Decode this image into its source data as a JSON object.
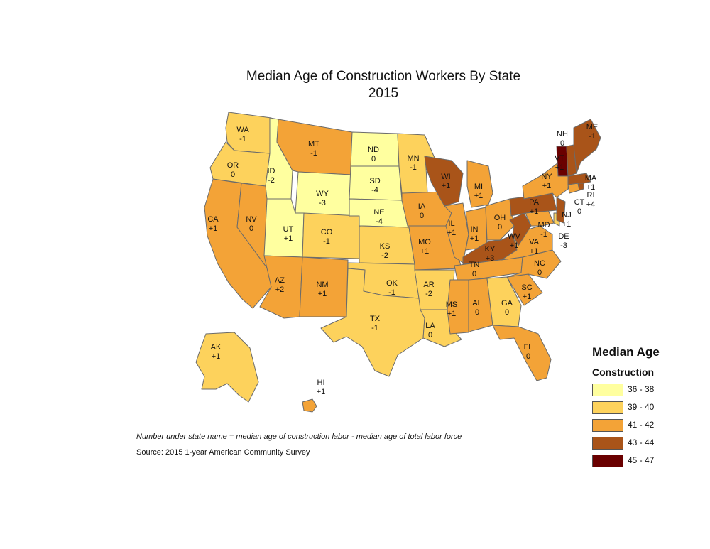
{
  "title_line1": "Median Age of Construction Workers By State",
  "title_line2": "2015",
  "legend": {
    "title": "Median Age",
    "subtitle": "Construction",
    "classes": [
      {
        "label": "36 - 38",
        "color": "#ffff9f"
      },
      {
        "label": "39 - 40",
        "color": "#fdd25c"
      },
      {
        "label": "41 - 42",
        "color": "#f3a337"
      },
      {
        "label": "43 - 44",
        "color": "#a95419"
      },
      {
        "label": "45 - 47",
        "color": "#6a0000"
      }
    ]
  },
  "note": "Number under state name = median age of construction labor - median age of total labor force",
  "source": "Source: 2015 1-year American Community Survey",
  "states": [
    {
      "abbr": "WA",
      "diff": "-1",
      "class": "39 - 40"
    },
    {
      "abbr": "OR",
      "diff": "0",
      "class": "39 - 40"
    },
    {
      "abbr": "CA",
      "diff": "+1",
      "class": "41 - 42"
    },
    {
      "abbr": "NV",
      "diff": "0",
      "class": "41 - 42"
    },
    {
      "abbr": "ID",
      "diff": "-2",
      "class": "36 - 38"
    },
    {
      "abbr": "MT",
      "diff": "-1",
      "class": "41 - 42"
    },
    {
      "abbr": "WY",
      "diff": "-3",
      "class": "36 - 38"
    },
    {
      "abbr": "UT",
      "diff": "+1",
      "class": "36 - 38"
    },
    {
      "abbr": "CO",
      "diff": "-1",
      "class": "39 - 40"
    },
    {
      "abbr": "AZ",
      "diff": "+2",
      "class": "41 - 42"
    },
    {
      "abbr": "NM",
      "diff": "+1",
      "class": "41 - 42"
    },
    {
      "abbr": "ND",
      "diff": "0",
      "class": "36 - 38"
    },
    {
      "abbr": "SD",
      "diff": "-4",
      "class": "36 - 38"
    },
    {
      "abbr": "NE",
      "diff": "-4",
      "class": "36 - 38"
    },
    {
      "abbr": "KS",
      "diff": "-2",
      "class": "39 - 40"
    },
    {
      "abbr": "OK",
      "diff": "-1",
      "class": "39 - 40"
    },
    {
      "abbr": "TX",
      "diff": "-1",
      "class": "39 - 40"
    },
    {
      "abbr": "MN",
      "diff": "-1",
      "class": "39 - 40"
    },
    {
      "abbr": "IA",
      "diff": "0",
      "class": "41 - 42"
    },
    {
      "abbr": "MO",
      "diff": "+1",
      "class": "41 - 42"
    },
    {
      "abbr": "AR",
      "diff": "-2",
      "class": "39 - 40"
    },
    {
      "abbr": "LA",
      "diff": "0",
      "class": "39 - 40"
    },
    {
      "abbr": "WI",
      "diff": "+1",
      "class": "43 - 44"
    },
    {
      "abbr": "IL",
      "diff": "+1",
      "class": "41 - 42"
    },
    {
      "abbr": "MI",
      "diff": "+1",
      "class": "41 - 42"
    },
    {
      "abbr": "IN",
      "diff": "+1",
      "class": "41 - 42"
    },
    {
      "abbr": "OH",
      "diff": "0",
      "class": "41 - 42"
    },
    {
      "abbr": "KY",
      "diff": "+3",
      "class": "43 - 44"
    },
    {
      "abbr": "TN",
      "diff": "0",
      "class": "41 - 42"
    },
    {
      "abbr": "MS",
      "diff": "+1",
      "class": "41 - 42"
    },
    {
      "abbr": "AL",
      "diff": "0",
      "class": "41 - 42"
    },
    {
      "abbr": "GA",
      "diff": "0",
      "class": "39 - 40"
    },
    {
      "abbr": "FL",
      "diff": "0",
      "class": "41 - 42"
    },
    {
      "abbr": "SC",
      "diff": "+1",
      "class": "41 - 42"
    },
    {
      "abbr": "NC",
      "diff": "0",
      "class": "41 - 42"
    },
    {
      "abbr": "VA",
      "diff": "+1",
      "class": "41 - 42"
    },
    {
      "abbr": "WV",
      "diff": "+1",
      "class": "43 - 44"
    },
    {
      "abbr": "MD",
      "diff": "-1",
      "class": "41 - 42"
    },
    {
      "abbr": "DE",
      "diff": "-3",
      "class": "39 - 40"
    },
    {
      "abbr": "PA",
      "diff": "+1",
      "class": "43 - 44"
    },
    {
      "abbr": "NJ",
      "diff": "+1",
      "class": "43 - 44"
    },
    {
      "abbr": "NY",
      "diff": "+1",
      "class": "41 - 42"
    },
    {
      "abbr": "CT",
      "diff": "0",
      "class": "41 - 42"
    },
    {
      "abbr": "RI",
      "diff": "+4",
      "class": "43 - 44"
    },
    {
      "abbr": "MA",
      "diff": "+1",
      "class": "43 - 44"
    },
    {
      "abbr": "VT",
      "diff": "+1",
      "class": "45 - 47"
    },
    {
      "abbr": "NH",
      "diff": "0",
      "class": "43 - 44"
    },
    {
      "abbr": "ME",
      "diff": "-1",
      "class": "43 - 44"
    },
    {
      "abbr": "AK",
      "diff": "+1",
      "class": "39 - 40"
    },
    {
      "abbr": "HI",
      "diff": "+1",
      "class": "41 - 42"
    }
  ]
}
